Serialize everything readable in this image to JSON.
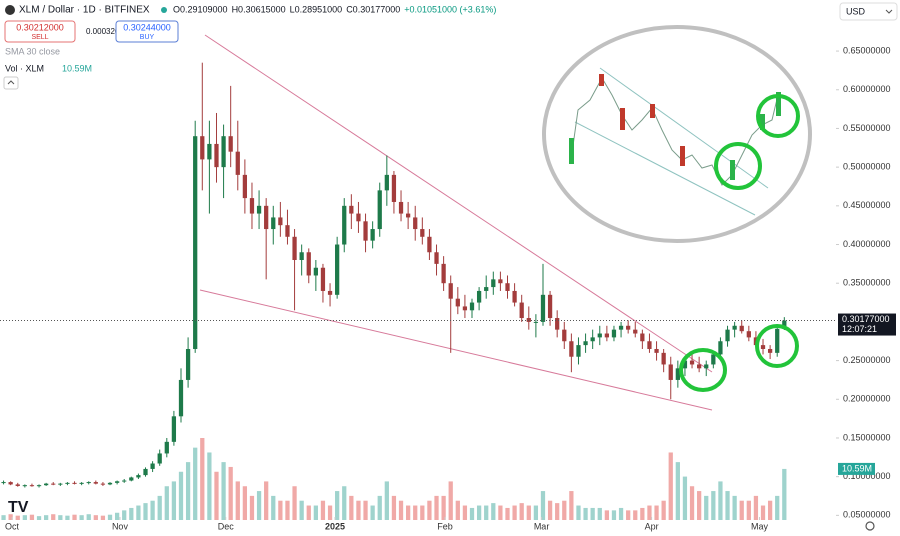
{
  "chart_data": {
    "type": "candlestick",
    "title": "XLM / Dollar · 1D · BITFINEX",
    "ohlc": [
      "O0.29109000",
      "H0.30615000",
      "L0.28951000",
      "C0.30177000",
      "+0.01051000 (+3.61%)"
    ],
    "sell": {
      "price": "0.30212000",
      "label": "SELL"
    },
    "spread": "0.00032000",
    "buy": {
      "price": "0.30244000",
      "label": "BUY"
    },
    "sma_label": "SMA 30 close",
    "volume_legend": "Vol · XLM",
    "volume_last": {
      "value": 10.59,
      "label": "10.59M"
    },
    "currency": "USD",
    "last_price": {
      "value": 0.30177,
      "label": "0.30177000"
    },
    "countdown": "12:07:21",
    "up_color": "#1e7a4a",
    "down_color": "#a33c3c",
    "volume_up_color": "#9fd3cd",
    "volume_down_color": "#f0a9a7",
    "grid": false,
    "xlim": [
      -0.5,
      117
    ],
    "xticks": [
      {
        "value": 1.2,
        "label": "Oct"
      },
      {
        "value": 16.4,
        "label": "Nov"
      },
      {
        "value": 31.3,
        "label": "Dec"
      },
      {
        "value": 46.7,
        "label": "2025"
      },
      {
        "value": 62.2,
        "label": "Feb"
      },
      {
        "value": 75.8,
        "label": "Mar"
      },
      {
        "value": 91.3,
        "label": "Apr"
      },
      {
        "value": 106.5,
        "label": "May"
      }
    ],
    "ylim": [
      0.044,
      0.716
    ],
    "yticks": [
      {
        "value": 0.05,
        "label": "0.05000000"
      },
      {
        "value": 0.1,
        "label": "0.10000000"
      },
      {
        "value": 0.15,
        "label": "0.15000000"
      },
      {
        "value": 0.2,
        "label": "0.20000000"
      },
      {
        "value": 0.25,
        "label": "0.25000000"
      },
      {
        "value": 0.35,
        "label": "0.35000000"
      },
      {
        "value": 0.4,
        "label": "0.40000000"
      },
      {
        "value": 0.45,
        "label": "0.45000000"
      },
      {
        "value": 0.5,
        "label": "0.50000000"
      },
      {
        "value": 0.55,
        "label": "0.55000000"
      },
      {
        "value": 0.6,
        "label": "0.60000000"
      },
      {
        "value": 0.65,
        "label": "0.65000000"
      }
    ],
    "candles": [
      [
        0.092,
        0.095,
        0.09,
        0.093
      ],
      [
        0.093,
        0.094,
        0.089,
        0.09
      ],
      [
        0.09,
        0.092,
        0.087,
        0.088
      ],
      [
        0.088,
        0.09,
        0.086,
        0.089
      ],
      [
        0.089,
        0.091,
        0.087,
        0.088
      ],
      [
        0.088,
        0.09,
        0.086,
        0.089
      ],
      [
        0.089,
        0.092,
        0.088,
        0.091
      ],
      [
        0.091,
        0.093,
        0.089,
        0.09
      ],
      [
        0.09,
        0.092,
        0.088,
        0.091
      ],
      [
        0.091,
        0.093,
        0.089,
        0.092
      ],
      [
        0.092,
        0.094,
        0.09,
        0.091
      ],
      [
        0.091,
        0.093,
        0.089,
        0.092
      ],
      [
        0.092,
        0.094,
        0.09,
        0.093
      ],
      [
        0.093,
        0.095,
        0.09,
        0.091
      ],
      [
        0.091,
        0.093,
        0.088,
        0.09
      ],
      [
        0.09,
        0.093,
        0.089,
        0.092
      ],
      [
        0.092,
        0.095,
        0.09,
        0.094
      ],
      [
        0.094,
        0.097,
        0.092,
        0.095
      ],
      [
        0.095,
        0.1,
        0.094,
        0.099
      ],
      [
        0.099,
        0.104,
        0.097,
        0.102
      ],
      [
        0.102,
        0.112,
        0.1,
        0.11
      ],
      [
        0.11,
        0.12,
        0.106,
        0.117
      ],
      [
        0.117,
        0.135,
        0.114,
        0.13
      ],
      [
        0.13,
        0.15,
        0.125,
        0.145
      ],
      [
        0.145,
        0.185,
        0.14,
        0.178
      ],
      [
        0.178,
        0.24,
        0.17,
        0.225
      ],
      [
        0.225,
        0.28,
        0.215,
        0.265
      ],
      [
        0.265,
        0.56,
        0.26,
        0.54
      ],
      [
        0.54,
        0.635,
        0.47,
        0.51
      ],
      [
        0.51,
        0.56,
        0.44,
        0.53
      ],
      [
        0.53,
        0.57,
        0.48,
        0.5
      ],
      [
        0.5,
        0.555,
        0.46,
        0.54
      ],
      [
        0.54,
        0.605,
        0.5,
        0.52
      ],
      [
        0.52,
        0.56,
        0.47,
        0.49
      ],
      [
        0.49,
        0.51,
        0.44,
        0.46
      ],
      [
        0.46,
        0.48,
        0.42,
        0.44
      ],
      [
        0.44,
        0.47,
        0.42,
        0.45
      ],
      [
        0.45,
        0.46,
        0.355,
        0.42
      ],
      [
        0.42,
        0.45,
        0.4,
        0.435
      ],
      [
        0.435,
        0.455,
        0.41,
        0.425
      ],
      [
        0.425,
        0.445,
        0.4,
        0.41
      ],
      [
        0.41,
        0.42,
        0.315,
        0.38
      ],
      [
        0.38,
        0.4,
        0.36,
        0.39
      ],
      [
        0.39,
        0.395,
        0.35,
        0.36
      ],
      [
        0.36,
        0.38,
        0.34,
        0.37
      ],
      [
        0.37,
        0.375,
        0.325,
        0.34
      ],
      [
        0.34,
        0.35,
        0.32,
        0.335
      ],
      [
        0.335,
        0.41,
        0.33,
        0.4
      ],
      [
        0.4,
        0.46,
        0.39,
        0.45
      ],
      [
        0.45,
        0.465,
        0.42,
        0.44
      ],
      [
        0.44,
        0.455,
        0.415,
        0.43
      ],
      [
        0.43,
        0.44,
        0.39,
        0.405
      ],
      [
        0.405,
        0.43,
        0.395,
        0.42
      ],
      [
        0.42,
        0.48,
        0.41,
        0.47
      ],
      [
        0.47,
        0.515,
        0.45,
        0.49
      ],
      [
        0.49,
        0.495,
        0.44,
        0.455
      ],
      [
        0.455,
        0.47,
        0.43,
        0.44
      ],
      [
        0.44,
        0.455,
        0.42,
        0.435
      ],
      [
        0.435,
        0.45,
        0.405,
        0.42
      ],
      [
        0.42,
        0.435,
        0.4,
        0.41
      ],
      [
        0.41,
        0.42,
        0.38,
        0.39
      ],
      [
        0.39,
        0.4,
        0.36,
        0.375
      ],
      [
        0.375,
        0.385,
        0.34,
        0.35
      ],
      [
        0.35,
        0.36,
        0.26,
        0.33
      ],
      [
        0.33,
        0.345,
        0.31,
        0.32
      ],
      [
        0.32,
        0.335,
        0.305,
        0.315
      ],
      [
        0.315,
        0.33,
        0.305,
        0.325
      ],
      [
        0.325,
        0.345,
        0.315,
        0.34
      ],
      [
        0.34,
        0.36,
        0.33,
        0.345
      ],
      [
        0.345,
        0.365,
        0.335,
        0.355
      ],
      [
        0.355,
        0.365,
        0.34,
        0.35
      ],
      [
        0.35,
        0.36,
        0.33,
        0.34
      ],
      [
        0.34,
        0.35,
        0.32,
        0.325
      ],
      [
        0.325,
        0.335,
        0.3,
        0.305
      ],
      [
        0.305,
        0.32,
        0.29,
        0.3
      ],
      [
        0.3,
        0.31,
        0.28,
        0.3
      ],
      [
        0.3,
        0.375,
        0.295,
        0.335
      ],
      [
        0.335,
        0.34,
        0.295,
        0.305
      ],
      [
        0.305,
        0.315,
        0.28,
        0.29
      ],
      [
        0.29,
        0.3,
        0.265,
        0.275
      ],
      [
        0.275,
        0.285,
        0.235,
        0.255
      ],
      [
        0.255,
        0.28,
        0.245,
        0.27
      ],
      [
        0.27,
        0.285,
        0.26,
        0.275
      ],
      [
        0.275,
        0.29,
        0.265,
        0.28
      ],
      [
        0.28,
        0.295,
        0.27,
        0.285
      ],
      [
        0.285,
        0.295,
        0.275,
        0.28
      ],
      [
        0.28,
        0.295,
        0.275,
        0.29
      ],
      [
        0.29,
        0.3,
        0.28,
        0.295
      ],
      [
        0.295,
        0.302,
        0.285,
        0.29
      ],
      [
        0.29,
        0.3,
        0.28,
        0.285
      ],
      [
        0.285,
        0.29,
        0.265,
        0.275
      ],
      [
        0.275,
        0.285,
        0.26,
        0.265
      ],
      [
        0.265,
        0.275,
        0.25,
        0.26
      ],
      [
        0.26,
        0.265,
        0.235,
        0.245
      ],
      [
        0.245,
        0.255,
        0.2,
        0.225
      ],
      [
        0.225,
        0.25,
        0.215,
        0.24
      ],
      [
        0.24,
        0.255,
        0.23,
        0.25
      ],
      [
        0.25,
        0.262,
        0.24,
        0.245
      ],
      [
        0.245,
        0.255,
        0.235,
        0.24
      ],
      [
        0.24,
        0.25,
        0.23,
        0.245
      ],
      [
        0.245,
        0.262,
        0.24,
        0.258
      ],
      [
        0.258,
        0.28,
        0.25,
        0.275
      ],
      [
        0.275,
        0.295,
        0.268,
        0.29
      ],
      [
        0.29,
        0.3,
        0.28,
        0.295
      ],
      [
        0.295,
        0.302,
        0.285,
        0.288
      ],
      [
        0.288,
        0.295,
        0.275,
        0.28
      ],
      [
        0.28,
        0.288,
        0.265,
        0.27
      ],
      [
        0.27,
        0.278,
        0.258,
        0.265
      ],
      [
        0.265,
        0.27,
        0.252,
        0.26
      ],
      [
        0.26,
        0.295,
        0.255,
        0.291
      ],
      [
        0.29109,
        0.30615,
        0.28951,
        0.30177
      ]
    ],
    "volume": [
      1,
      1.2,
      0.9,
      1,
      1.1,
      0.8,
      1,
      1.2,
      1,
      0.9,
      1.1,
      1,
      1.2,
      1,
      0.9,
      1.1,
      1.5,
      2,
      2.5,
      3,
      3.5,
      4,
      5,
      7,
      8,
      10,
      12,
      15,
      17,
      14,
      10,
      12,
      11,
      8,
      7,
      5,
      6,
      8,
      5,
      4,
      4,
      7,
      4,
      3,
      3,
      4,
      3,
      6,
      7,
      5,
      4,
      4,
      3,
      5,
      8,
      5,
      4,
      3,
      3,
      3,
      4,
      5,
      5,
      8,
      4,
      3,
      2.5,
      3,
      3,
      3.5,
      3,
      2.5,
      3,
      3.5,
      3,
      3,
      6,
      4,
      3.5,
      4,
      6,
      3,
      2.5,
      2.5,
      2.5,
      2,
      2,
      2.5,
      2,
      2,
      2.5,
      3,
      3,
      4,
      14,
      12,
      9,
      7,
      6,
      5,
      6,
      8,
      6,
      5,
      4,
      4,
      5,
      3,
      4,
      5,
      10.59
    ]
  }
}
